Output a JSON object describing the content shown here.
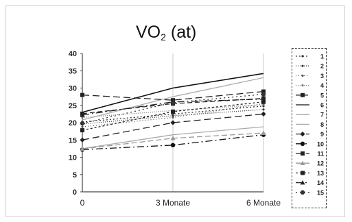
{
  "chart_data": {
    "type": "line",
    "title": {
      "main": "VO",
      "subscript": "2",
      "suffix": " (at)"
    },
    "categories": [
      "0",
      "3 Monate",
      "6 Monate"
    ],
    "y_ticks": [
      "0",
      "5",
      "10",
      "15",
      "20",
      "25",
      "30",
      "35",
      "40"
    ],
    "ylim": [
      0,
      40
    ],
    "grid": {
      "vertical": true,
      "horizontal": false
    },
    "legend_position": "right",
    "series": [
      {
        "name": "1",
        "values": [
          20.2,
          22.5,
          24.8
        ],
        "color": "#333333",
        "dash": "2,3",
        "marker": "dot"
      },
      {
        "name": "2",
        "values": [
          19.6,
          22.0,
          23.8
        ],
        "color": "#333333",
        "dash": "1,2",
        "marker": "dot"
      },
      {
        "name": "3",
        "values": [
          18.8,
          21.5,
          25.5
        ],
        "color": "#555555",
        "dash": "1,3",
        "marker": "dot"
      },
      {
        "name": "4",
        "values": [
          21.5,
          23.5,
          25.2
        ],
        "color": "#777777",
        "dash": "1,2",
        "marker": "dot"
      },
      {
        "name": "5",
        "values": [
          22.6,
          25.5,
          27.0
        ],
        "color": "#222222",
        "dash": "7,4",
        "marker": "square"
      },
      {
        "name": "6",
        "values": [
          23.0,
          30.0,
          34.2
        ],
        "color": "#111111",
        "dash": "",
        "marker": "none"
      },
      {
        "name": "7",
        "values": [
          20.8,
          27.5,
          33.0
        ],
        "color": "#aaaaaa",
        "dash": "",
        "marker": "none"
      },
      {
        "name": "8",
        "values": [
          12.5,
          16.5,
          18.8
        ],
        "color": "#aaaaaa",
        "dash": "",
        "marker": "none"
      },
      {
        "name": "9",
        "values": [
          15.0,
          20.0,
          22.5
        ],
        "color": "#222222",
        "dash": "10,5",
        "marker": "diamond"
      },
      {
        "name": "10",
        "values": [
          12.2,
          13.5,
          16.5
        ],
        "color": "#111111",
        "dash": "10,4,2,4",
        "marker": "circle"
      },
      {
        "name": "11",
        "values": [
          28.0,
          26.5,
          29.0
        ],
        "color": "#222222",
        "dash": "10,5",
        "marker": "square"
      },
      {
        "name": "12",
        "values": [
          12.4,
          15.5,
          17.0
        ],
        "color": "#999999",
        "dash": "8,4",
        "marker": "triangle"
      },
      {
        "name": "13",
        "values": [
          17.8,
          23.2,
          26.0
        ],
        "color": "#222222",
        "dash": "3,3",
        "marker": "square"
      },
      {
        "name": "14",
        "values": [
          22.2,
          26.0,
          26.8
        ],
        "color": "#222222",
        "dash": "10,4,2,4",
        "marker": "triangle"
      },
      {
        "name": "15",
        "values": [
          19.8,
          25.8,
          28.2
        ],
        "color": "#333333",
        "dash": "2,4",
        "marker": "circle"
      }
    ]
  }
}
